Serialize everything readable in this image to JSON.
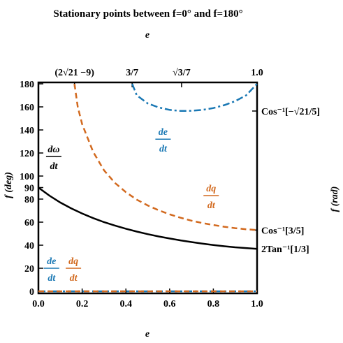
{
  "chart_data": {
    "type": "line",
    "title": "Stationary points between f=0° and f=180°",
    "xlabel": "e",
    "ylabel": "f (deg)",
    "top_xlabel": "e",
    "right_ylabel": "f (rad)",
    "xlim": [
      0,
      1
    ],
    "ylim": [
      0,
      180
    ],
    "x_ticks": [
      "0.0",
      "0.2",
      "0.4",
      "0.6",
      "0.8",
      "1.0"
    ],
    "y_ticks": [
      "0",
      "20",
      "40",
      "60",
      "80",
      "90",
      "100",
      "120",
      "140",
      "160",
      "180"
    ],
    "top_ticks": [
      {
        "label": "(2√21 −9)",
        "value": 0.165
      },
      {
        "label": "3/7",
        "value": 0.4286
      },
      {
        "label": "√3/7",
        "value": 0.6547
      },
      {
        "label": "1.0",
        "value": 1.0
      }
    ],
    "right_ticks": [
      {
        "label": "Cos⁻¹[−√21/5]",
        "value": 156.4
      },
      {
        "label": "Cos⁻¹[3/5]",
        "value": 53.13
      },
      {
        "label": "2Tan⁻¹[1/3]",
        "value": 36.87
      }
    ],
    "series": [
      {
        "name": "dω/dt",
        "color": "#000000",
        "style": "solid",
        "points": [
          [
            0.0,
            90
          ],
          [
            0.05,
            83
          ],
          [
            0.1,
            77
          ],
          [
            0.15,
            72
          ],
          [
            0.2,
            67.5
          ],
          [
            0.25,
            63.5
          ],
          [
            0.3,
            60
          ],
          [
            0.35,
            57
          ],
          [
            0.4,
            54.3
          ],
          [
            0.45,
            51.8
          ],
          [
            0.5,
            49.6
          ],
          [
            0.55,
            47.6
          ],
          [
            0.6,
            45.8
          ],
          [
            0.65,
            44.2
          ],
          [
            0.7,
            42.7
          ],
          [
            0.75,
            41.4
          ],
          [
            0.8,
            40.2
          ],
          [
            0.85,
            39.1
          ],
          [
            0.9,
            38.2
          ],
          [
            0.95,
            37.5
          ],
          [
            1.0,
            36.87
          ]
        ]
      },
      {
        "name": "dq/dt",
        "color": "#d2691e",
        "style": "dashed",
        "points": [
          [
            0.165,
            180
          ],
          [
            0.18,
            160
          ],
          [
            0.2,
            145
          ],
          [
            0.25,
            121
          ],
          [
            0.3,
            105
          ],
          [
            0.35,
            94
          ],
          [
            0.4,
            86
          ],
          [
            0.45,
            79.5
          ],
          [
            0.5,
            74.5
          ],
          [
            0.55,
            70.3
          ],
          [
            0.6,
            66.8
          ],
          [
            0.65,
            63.8
          ],
          [
            0.7,
            61.3
          ],
          [
            0.75,
            59.2
          ],
          [
            0.8,
            57.5
          ],
          [
            0.85,
            56
          ],
          [
            0.9,
            54.8
          ],
          [
            0.95,
            53.8
          ],
          [
            1.0,
            53.13
          ]
        ]
      },
      {
        "name": "de/dt",
        "color": "#1a78b4",
        "style": "dashdot",
        "points": [
          [
            0.4286,
            180
          ],
          [
            0.45,
            170
          ],
          [
            0.5,
            163
          ],
          [
            0.55,
            159.5
          ],
          [
            0.6,
            157.4
          ],
          [
            0.65,
            156.5
          ],
          [
            0.7,
            156.6
          ],
          [
            0.75,
            157.4
          ],
          [
            0.8,
            159
          ],
          [
            0.85,
            161.5
          ],
          [
            0.9,
            165
          ],
          [
            0.95,
            170
          ],
          [
            1.0,
            180
          ]
        ]
      },
      {
        "name": "de/dt",
        "color": "#1a78b4",
        "style": "dashdot",
        "points": [
          [
            0.0,
            0
          ],
          [
            1.0,
            0
          ]
        ]
      },
      {
        "name": "dq/dt",
        "color": "#d2691e",
        "style": "dashed",
        "points": [
          [
            0.0,
            0
          ],
          [
            1.0,
            0
          ]
        ]
      }
    ],
    "annotations": [
      {
        "num": "dω",
        "den": "dt",
        "color": "#000000",
        "x": 0.07,
        "y": 117
      },
      {
        "num": "de",
        "den": "dt",
        "color": "#1a78b4",
        "x": 0.57,
        "y": 132
      },
      {
        "num": "dq",
        "den": "dt",
        "color": "#d2691e",
        "x": 0.79,
        "y": 83
      },
      {
        "num": "de",
        "den": "dt",
        "color": "#1a78b4",
        "x": 0.06,
        "y": 20
      },
      {
        "num": "dq",
        "den": "dt",
        "color": "#d2691e",
        "x": 0.16,
        "y": 20
      }
    ]
  }
}
